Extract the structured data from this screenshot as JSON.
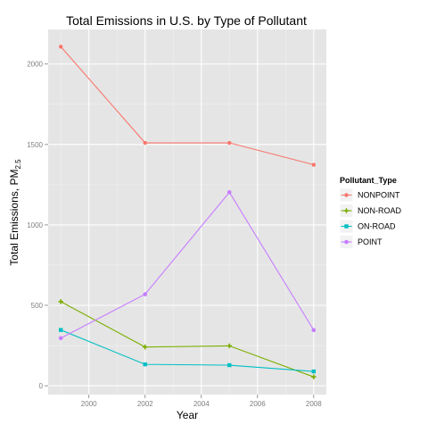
{
  "chart_data": {
    "type": "line",
    "title": "Total Emissions in U.S. by Type of Pollutant",
    "xlabel": "Year",
    "ylabel": "Total Emissions, PM",
    "ylabel_subscript": "2.5",
    "x": [
      1999,
      2002,
      2005,
      2008
    ],
    "x_ticks": [
      2000,
      2002,
      2004,
      2006,
      2008
    ],
    "y_ticks": [
      0,
      500,
      1000,
      1500,
      2000
    ],
    "xlim": [
      1998.55,
      2008.45
    ],
    "ylim": [
      -55,
      2215
    ],
    "grid": true,
    "legend": {
      "title": "Pollutant_Type",
      "position": "right"
    },
    "series": [
      {
        "name": "NONPOINT",
        "color": "#F8766D",
        "marker": "circle",
        "values": [
          2108,
          1510,
          1510,
          1374
        ]
      },
      {
        "name": "NON-ROAD",
        "color": "#7CAE00",
        "marker": "plus",
        "values": [
          523,
          241,
          248,
          55
        ]
      },
      {
        "name": "ON-ROAD",
        "color": "#00BFC4",
        "marker": "square",
        "values": [
          347,
          133,
          128,
          89
        ]
      },
      {
        "name": "POINT",
        "color": "#C77CFF",
        "marker": "dot",
        "values": [
          296,
          569,
          1203,
          346
        ]
      }
    ]
  }
}
